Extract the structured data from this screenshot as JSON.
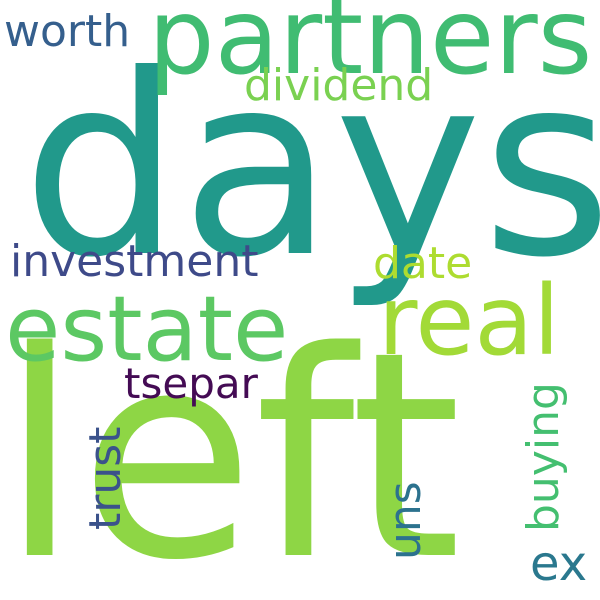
{
  "words": [
    {
      "text": "days",
      "color": "#21998b"
    },
    {
      "text": "left",
      "color": "#8ed645"
    },
    {
      "text": "partners",
      "color": "#40bc72"
    },
    {
      "text": "estate",
      "color": "#5cc863"
    },
    {
      "text": "real",
      "color": "#a2da37"
    },
    {
      "text": "dividend",
      "color": "#7ad151"
    },
    {
      "text": "worth",
      "color": "#355f8d"
    },
    {
      "text": "investment",
      "color": "#3e4a89"
    },
    {
      "text": "date",
      "color": "#addc30"
    },
    {
      "text": "tsepar",
      "color": "#440b54"
    },
    {
      "text": "trust",
      "color": "#3b528b"
    },
    {
      "text": "uns",
      "color": "#2c728e"
    },
    {
      "text": "buying",
      "color": "#44bf70"
    },
    {
      "text": "ex",
      "color": "#2a788e"
    }
  ]
}
